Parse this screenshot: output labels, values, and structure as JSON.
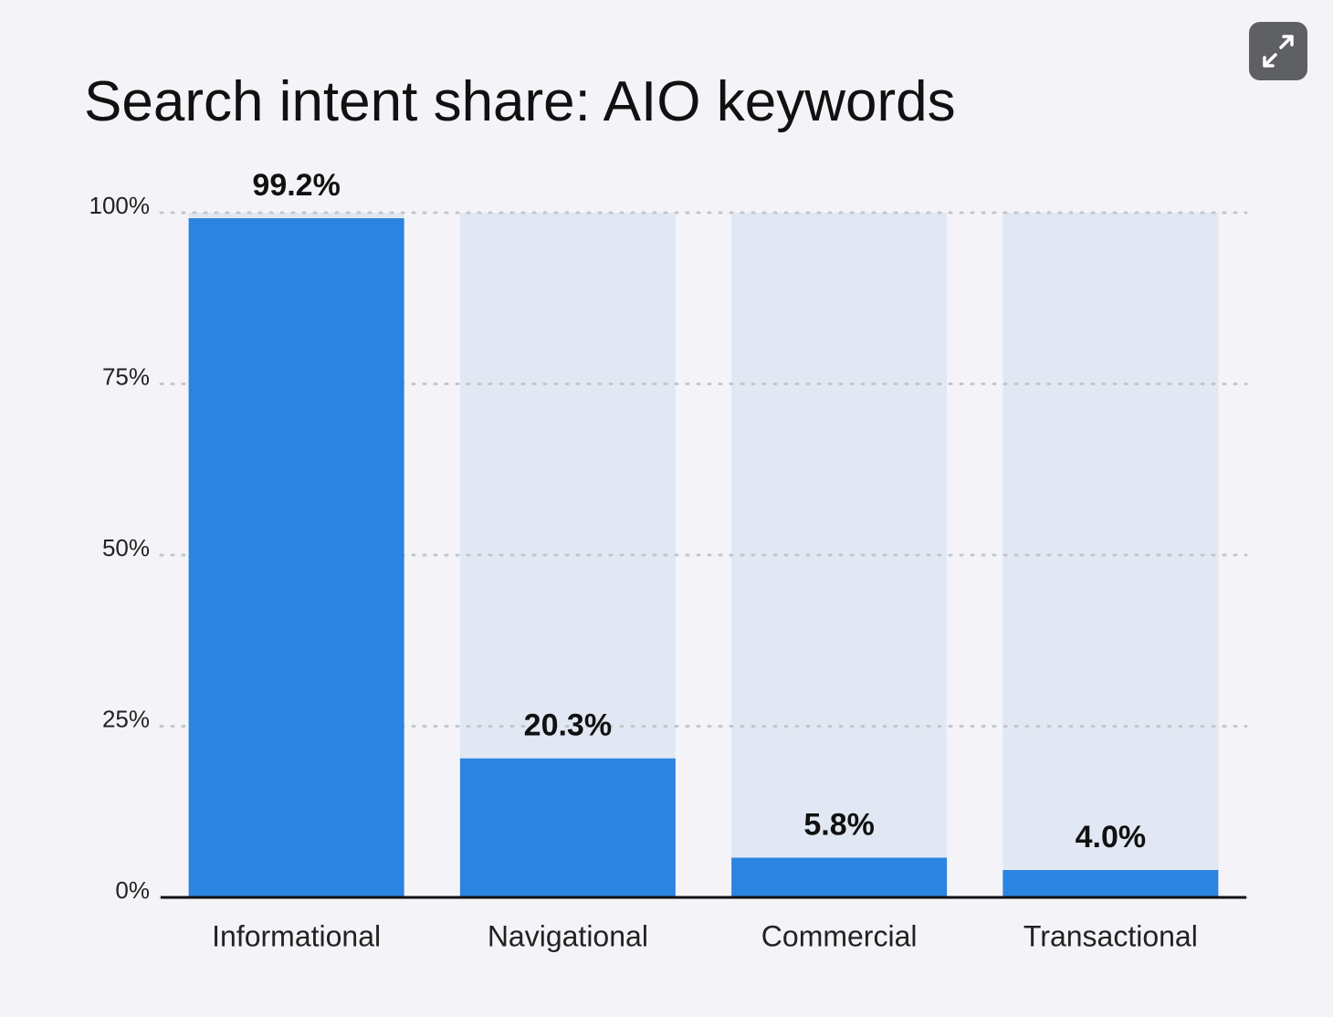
{
  "chart_data": {
    "type": "bar",
    "title": "Search intent share: AIO keywords",
    "categories": [
      "Informational",
      "Navigational",
      "Commercial",
      "Transactional"
    ],
    "values": [
      99.2,
      20.3,
      5.8,
      4.0
    ],
    "value_labels": [
      "99.2%",
      "20.3%",
      "5.8%",
      "4.0%"
    ],
    "color": "#2b84e0",
    "ylim": [
      0,
      100
    ],
    "yticks": [
      {
        "value": 0,
        "label": "0%"
      },
      {
        "value": 25,
        "label": "25%"
      },
      {
        "value": 50,
        "label": "50%"
      },
      {
        "value": 75,
        "label": "75%"
      },
      {
        "value": 100,
        "label": "100%"
      }
    ],
    "grid": true
  }
}
